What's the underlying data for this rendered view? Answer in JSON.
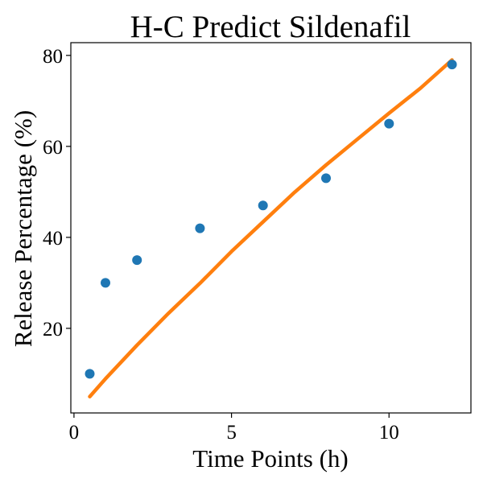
{
  "chart_data": {
    "type": "scatter",
    "title": "H-C Predict Sildenafil",
    "xlabel": "Time Points (h)",
    "ylabel": "Release Percentage (%)",
    "xlim": [
      -0.1,
      12.6
    ],
    "ylim": [
      1.4,
      82.8
    ],
    "xticks": [
      0,
      5,
      10
    ],
    "yticks": [
      20,
      40,
      60,
      80
    ],
    "grid": false,
    "legend": "none",
    "colors": {
      "points": "#1f77b4",
      "fit_line": "#ff7f0e",
      "axes": "#000000"
    },
    "series": [
      {
        "type": "scatter",
        "x": [
          0.5,
          1,
          2,
          4,
          6,
          8,
          10,
          12
        ],
        "y": [
          10,
          30,
          35,
          42,
          47,
          53,
          65,
          78
        ]
      },
      {
        "type": "line",
        "x": [
          0.5,
          1,
          2,
          3,
          4,
          5,
          6,
          7,
          8,
          9,
          10,
          11,
          12
        ],
        "y": [
          5,
          8.9,
          16.3,
          23.3,
          29.9,
          36.9,
          43.4,
          49.9,
          55.9,
          61.6,
          67.3,
          72.8,
          79
        ]
      }
    ]
  }
}
